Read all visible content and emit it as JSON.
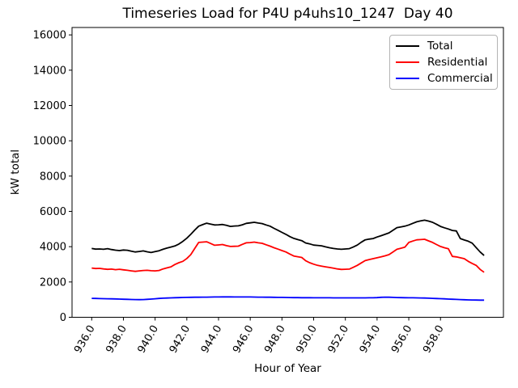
{
  "window": {
    "background": "#ffffff"
  },
  "colors": {
    "axis": "#000000",
    "legend_border": "#b3b3b3",
    "total": "#000000",
    "residential": "#ff0000",
    "commercial": "#0000ff"
  },
  "chart_data": {
    "type": "line",
    "title": "Timeseries Load for P4U p4uhs10_1247  Day 40",
    "xlabel": "Hour of Year",
    "ylabel": "kW total",
    "xlim": [
      934.76,
      961.97
    ],
    "ylim": [
      0,
      16420
    ],
    "grid": false,
    "legend_position": "top-right",
    "xtick_values": [
      936,
      938,
      940,
      942,
      944,
      946,
      948,
      950,
      952,
      954,
      956,
      958
    ],
    "xtick_labels": [
      "936.0",
      "938.0",
      "940.0",
      "942.0",
      "944.0",
      "946.0",
      "948.0",
      "950.0",
      "952.0",
      "954.0",
      "956.0",
      "958.0"
    ],
    "ytick_values": [
      0,
      2000,
      4000,
      6000,
      8000,
      10000,
      12000,
      14000,
      16000
    ],
    "ytick_labels": [
      "0",
      "2000",
      "4000",
      "6000",
      "8000",
      "10000",
      "12000",
      "14000",
      "16000"
    ],
    "x": [
      936.0,
      936.25,
      936.5,
      936.75,
      937.0,
      937.25,
      937.5,
      937.75,
      938.0,
      938.25,
      938.5,
      938.75,
      939.0,
      939.25,
      939.5,
      939.75,
      940.0,
      940.25,
      940.5,
      940.75,
      941.0,
      941.25,
      941.5,
      941.75,
      942.0,
      942.25,
      942.5,
      942.75,
      943.0,
      943.25,
      943.5,
      943.75,
      944.0,
      944.25,
      944.5,
      944.75,
      945.0,
      945.25,
      945.5,
      945.75,
      946.0,
      946.25,
      946.5,
      946.75,
      947.0,
      947.25,
      947.5,
      947.75,
      948.0,
      948.25,
      948.5,
      948.75,
      949.0,
      949.25,
      949.5,
      949.75,
      950.0,
      950.25,
      950.5,
      950.75,
      951.0,
      951.25,
      951.5,
      951.75,
      952.0,
      952.25,
      952.5,
      952.75,
      953.0,
      953.25,
      953.5,
      953.75,
      954.0,
      954.25,
      954.5,
      954.75,
      955.0,
      955.25,
      955.5,
      955.75,
      956.0,
      956.25,
      956.5,
      956.75,
      957.0,
      957.25,
      957.5,
      957.75,
      958.0,
      958.25,
      958.5,
      958.75,
      959.0,
      959.25,
      959.5,
      959.75,
      960.0,
      960.25,
      960.5,
      960.75
    ],
    "series": [
      {
        "name": "Total",
        "color": "#000000",
        "values": [
          3900,
          3860,
          3870,
          3850,
          3890,
          3840,
          3800,
          3780,
          3810,
          3795,
          3740,
          3700,
          3730,
          3760,
          3710,
          3670,
          3720,
          3770,
          3850,
          3920,
          3980,
          4040,
          4150,
          4300,
          4480,
          4700,
          4940,
          5160,
          5250,
          5330,
          5280,
          5230,
          5240,
          5260,
          5210,
          5150,
          5170,
          5180,
          5240,
          5320,
          5350,
          5380,
          5340,
          5310,
          5230,
          5160,
          5040,
          4930,
          4810,
          4700,
          4570,
          4470,
          4400,
          4340,
          4210,
          4160,
          4090,
          4070,
          4050,
          3990,
          3940,
          3900,
          3870,
          3850,
          3870,
          3890,
          3980,
          4090,
          4250,
          4390,
          4430,
          4460,
          4550,
          4620,
          4700,
          4780,
          4930,
          5080,
          5120,
          5160,
          5230,
          5320,
          5410,
          5460,
          5500,
          5450,
          5380,
          5270,
          5150,
          5070,
          5000,
          4920,
          4890,
          4460,
          4380,
          4310,
          4200,
          3950,
          3700,
          3500
        ]
      },
      {
        "name": "Residential",
        "color": "#ff0000",
        "values": [
          2790,
          2760,
          2770,
          2740,
          2715,
          2730,
          2700,
          2720,
          2690,
          2660,
          2630,
          2600,
          2630,
          2650,
          2660,
          2640,
          2630,
          2650,
          2740,
          2800,
          2860,
          2990,
          3090,
          3170,
          3330,
          3550,
          3900,
          4240,
          4260,
          4280,
          4180,
          4080,
          4100,
          4120,
          4060,
          4010,
          4020,
          4030,
          4130,
          4220,
          4230,
          4260,
          4220,
          4190,
          4110,
          4030,
          3940,
          3860,
          3780,
          3700,
          3580,
          3470,
          3430,
          3390,
          3200,
          3090,
          3010,
          2940,
          2900,
          2860,
          2820,
          2780,
          2740,
          2710,
          2720,
          2730,
          2830,
          2940,
          3080,
          3210,
          3270,
          3320,
          3370,
          3420,
          3480,
          3550,
          3700,
          3850,
          3910,
          3970,
          4240,
          4320,
          4390,
          4400,
          4420,
          4330,
          4240,
          4120,
          4010,
          3940,
          3880,
          3450,
          3420,
          3370,
          3320,
          3170,
          3050,
          2940,
          2710,
          2550
        ]
      },
      {
        "name": "Commercial",
        "color": "#0000ff",
        "values": [
          1070,
          1065,
          1060,
          1055,
          1050,
          1045,
          1038,
          1030,
          1022,
          1015,
          1008,
          1002,
          1000,
          1005,
          1015,
          1030,
          1048,
          1065,
          1080,
          1092,
          1100,
          1108,
          1115,
          1120,
          1125,
          1130,
          1135,
          1138,
          1140,
          1142,
          1145,
          1148,
          1150,
          1152,
          1153,
          1152,
          1150,
          1150,
          1150,
          1150,
          1148,
          1145,
          1142,
          1140,
          1138,
          1135,
          1132,
          1128,
          1125,
          1122,
          1118,
          1115,
          1112,
          1110,
          1108,
          1107,
          1106,
          1105,
          1104,
          1103,
          1102,
          1101,
          1100,
          1100,
          1100,
          1100,
          1100,
          1100,
          1100,
          1100,
          1102,
          1105,
          1115,
          1130,
          1140,
          1135,
          1125,
          1118,
          1112,
          1108,
          1105,
          1102,
          1100,
          1095,
          1090,
          1082,
          1072,
          1062,
          1052,
          1042,
          1032,
          1022,
          1012,
          1002,
          992,
          985,
          980,
          975,
          972,
          970
        ]
      }
    ]
  }
}
